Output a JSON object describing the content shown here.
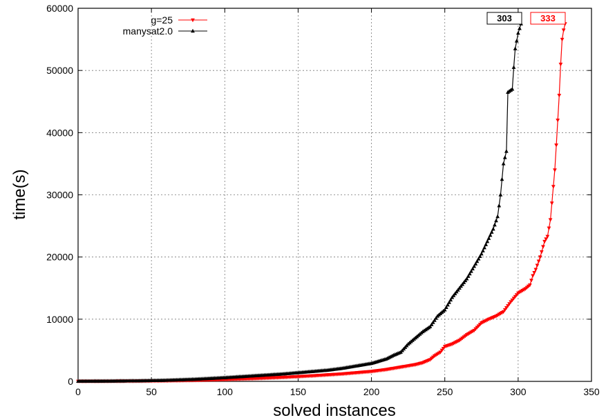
{
  "chart_data": {
    "type": "line",
    "xlabel": "solved instances",
    "ylabel": "time(s)",
    "xlim": [
      0,
      350
    ],
    "ylim": [
      0,
      60000
    ],
    "xticks": [
      0,
      50,
      100,
      150,
      200,
      250,
      300,
      350
    ],
    "yticks": [
      0,
      10000,
      20000,
      30000,
      40000,
      50000,
      60000
    ],
    "grid": true,
    "legend_position": "top-left",
    "series": [
      {
        "name": "g=25",
        "color": "#ff0000",
        "marker": "triangle-down",
        "points": [
          [
            0,
            20
          ],
          [
            20,
            30
          ],
          [
            40,
            50
          ],
          [
            60,
            90
          ],
          [
            80,
            180
          ],
          [
            100,
            300
          ],
          [
            120,
            450
          ],
          [
            140,
            650
          ],
          [
            160,
            900
          ],
          [
            180,
            1200
          ],
          [
            200,
            1600
          ],
          [
            210,
            1900
          ],
          [
            220,
            2300
          ],
          [
            230,
            2700
          ],
          [
            235,
            3000
          ],
          [
            240,
            3500
          ],
          [
            243,
            4100
          ],
          [
            247,
            4700
          ],
          [
            250,
            5600
          ],
          [
            255,
            6000
          ],
          [
            260,
            6600
          ],
          [
            265,
            7500
          ],
          [
            270,
            8200
          ],
          [
            275,
            9400
          ],
          [
            280,
            10000
          ],
          [
            285,
            10500
          ],
          [
            290,
            11200
          ],
          [
            295,
            12800
          ],
          [
            300,
            14200
          ],
          [
            305,
            14900
          ],
          [
            308,
            15500
          ],
          [
            310,
            17000
          ],
          [
            312,
            18000
          ],
          [
            315,
            20000
          ],
          [
            318,
            22500
          ],
          [
            320,
            23300
          ],
          [
            322,
            26000
          ],
          [
            325,
            34000
          ],
          [
            326,
            38000
          ],
          [
            327,
            42000
          ],
          [
            328,
            46000
          ],
          [
            329,
            51000
          ],
          [
            330,
            55000
          ],
          [
            331,
            56500
          ],
          [
            332,
            57500
          ]
        ]
      },
      {
        "name": "manysat2.0",
        "color": "#000000",
        "marker": "triangle-up",
        "points": [
          [
            0,
            30
          ],
          [
            20,
            50
          ],
          [
            40,
            90
          ],
          [
            60,
            180
          ],
          [
            80,
            350
          ],
          [
            100,
            600
          ],
          [
            120,
            900
          ],
          [
            140,
            1200
          ],
          [
            160,
            1600
          ],
          [
            170,
            1800
          ],
          [
            180,
            2100
          ],
          [
            190,
            2500
          ],
          [
            200,
            2900
          ],
          [
            210,
            3600
          ],
          [
            215,
            4200
          ],
          [
            220,
            4700
          ],
          [
            225,
            6000
          ],
          [
            230,
            7000
          ],
          [
            235,
            8000
          ],
          [
            240,
            8800
          ],
          [
            245,
            10500
          ],
          [
            250,
            11500
          ],
          [
            255,
            13500
          ],
          [
            260,
            15000
          ],
          [
            265,
            16500
          ],
          [
            270,
            18500
          ],
          [
            275,
            20500
          ],
          [
            280,
            23000
          ],
          [
            283,
            24500
          ],
          [
            286,
            26500
          ],
          [
            288,
            30000
          ],
          [
            290,
            35000
          ],
          [
            292,
            37000
          ],
          [
            293,
            46500
          ],
          [
            296,
            47000
          ],
          [
            297,
            50500
          ],
          [
            298,
            53500
          ],
          [
            300,
            56000
          ],
          [
            302,
            57500
          ]
        ]
      }
    ],
    "annotations": [
      {
        "text": "303",
        "color": "#000000"
      },
      {
        "text": "333",
        "color": "#ff0000"
      }
    ]
  }
}
